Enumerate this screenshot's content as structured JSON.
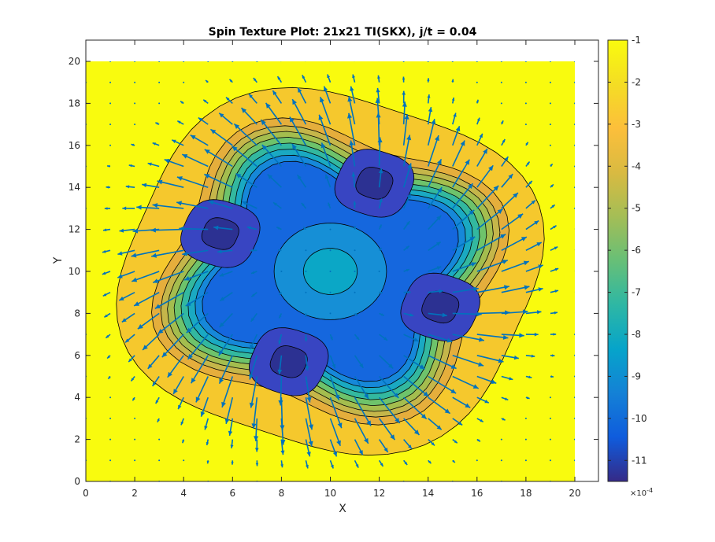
{
  "chart_data": {
    "type": "contour",
    "title": "Spin Texture Plot: 21x21 TI(SKX), j/t = 0.04",
    "xlabel": "X",
    "ylabel": "Y",
    "xlim": [
      0,
      20
    ],
    "ylim": [
      0,
      20
    ],
    "x_ticks": [
      "0",
      "2",
      "4",
      "6",
      "8",
      "10",
      "12",
      "14",
      "16",
      "18",
      "20"
    ],
    "y_ticks": [
      "0",
      "2",
      "4",
      "6",
      "8",
      "10",
      "12",
      "14",
      "16",
      "18",
      "20"
    ],
    "overlay": "quiver",
    "colorbar": {
      "ticks": [
        "-1",
        "-2",
        "-3",
        "-4",
        "-5",
        "-6",
        "-7",
        "-8",
        "-9",
        "-10",
        "-11"
      ],
      "range": [
        -11.5,
        -1
      ],
      "exponent_label": "×10",
      "exponent_power": "-4",
      "colormap": "parula"
    },
    "contour_center": [
      10,
      10
    ],
    "contour_levels": [
      {
        "value": -1.0,
        "color": "#f9fb0e",
        "radius": 11.5,
        "amp": 0
      },
      {
        "value": -2.0,
        "color": "#f5c82d",
        "radius": 8.6,
        "amp": 0.06
      },
      {
        "value": -3.0,
        "color": "#e5ae3c",
        "radius": 6.9,
        "amp": 0.12
      },
      {
        "value": -4.0,
        "color": "#c5b64a",
        "radius": 6.5,
        "amp": 0.13
      },
      {
        "value": -5.0,
        "color": "#a4bd4e",
        "radius": 6.2,
        "amp": 0.14
      },
      {
        "value": -6.0,
        "color": "#6ec36b",
        "radius": 5.9,
        "amp": 0.15
      },
      {
        "value": -7.0,
        "color": "#33b89f",
        "radius": 5.6,
        "amp": 0.16
      },
      {
        "value": -8.0,
        "color": "#1aa9c2",
        "radius": 5.3,
        "amp": 0.17
      },
      {
        "value": -9.0,
        "color": "#1688d9",
        "radius": 5.0,
        "amp": 0.18
      },
      {
        "value": -10.0,
        "color": "#1567de",
        "radius": 4.7,
        "amp": 0.19
      }
    ],
    "inner_regions": [
      {
        "value": -9.0,
        "color": "#168fd6",
        "center": [
          10,
          10
        ],
        "radius": 2.3
      },
      {
        "value": -8.0,
        "color": "#0ba7c6",
        "center": [
          10,
          10
        ],
        "radius": 1.1
      }
    ],
    "minima": [
      {
        "center": [
          5.5,
          11.8
        ],
        "value": -11.0,
        "radius_outer": 1.6,
        "radius_inner": 0.75
      },
      {
        "center": [
          11.8,
          14.2
        ],
        "value": -11.0,
        "radius_outer": 1.6,
        "radius_inner": 0.75
      },
      {
        "center": [
          14.5,
          8.3
        ],
        "value": -11.0,
        "radius_outer": 1.6,
        "radius_inner": 0.75
      },
      {
        "center": [
          8.3,
          5.7
        ],
        "value": -11.0,
        "radius_outer": 1.6,
        "radius_inner": 0.75
      }
    ],
    "minima_colors": [
      "#3845c2",
      "#2c3192"
    ],
    "arrow_color": "#0072bd"
  }
}
